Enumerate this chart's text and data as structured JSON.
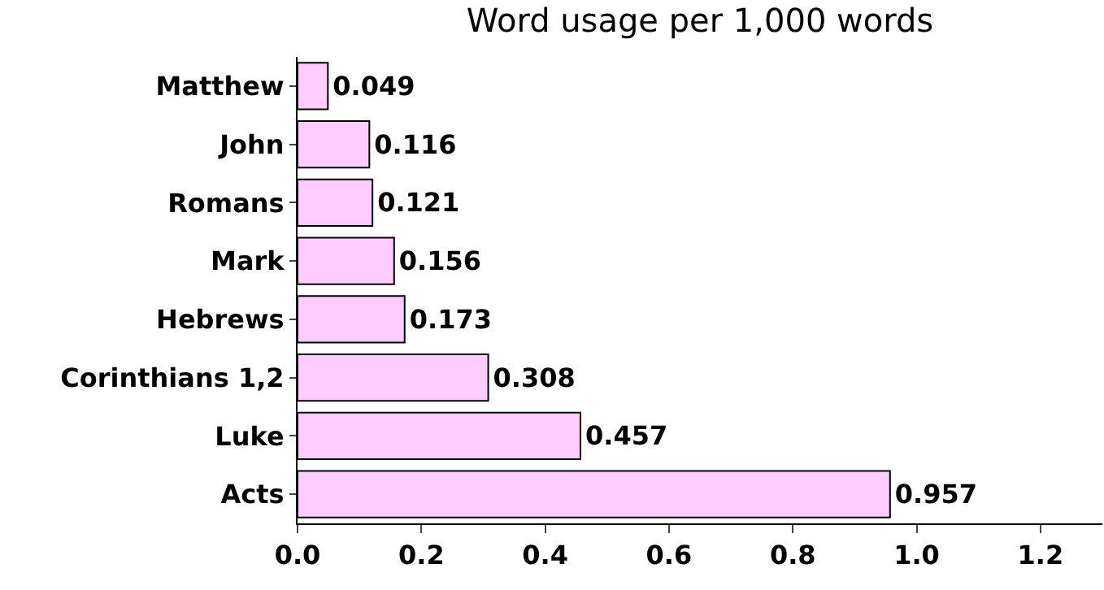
{
  "chart_data": {
    "type": "bar",
    "orientation": "horizontal",
    "title": "Word usage per 1,000 words",
    "categories": [
      "Matthew",
      "John",
      "Romans",
      "Mark",
      "Hebrews",
      "Corinthians 1,2",
      "Luke",
      "Acts"
    ],
    "values": [
      0.049,
      0.116,
      0.121,
      0.156,
      0.173,
      0.308,
      0.457,
      0.957
    ],
    "color": "#ffccff",
    "data_labels": true,
    "xlim": [
      0,
      1.3
    ],
    "xticks": [
      {
        "value": 0,
        "label": "0.0"
      },
      {
        "value": 0.2,
        "label": "0.2"
      },
      {
        "value": 0.4,
        "label": "0.4"
      },
      {
        "value": 0.6,
        "label": "0.6"
      },
      {
        "value": 0.8,
        "label": "0.8"
      },
      {
        "value": 1,
        "label": "1.0"
      },
      {
        "value": 1.2,
        "label": "1.2"
      }
    ]
  }
}
